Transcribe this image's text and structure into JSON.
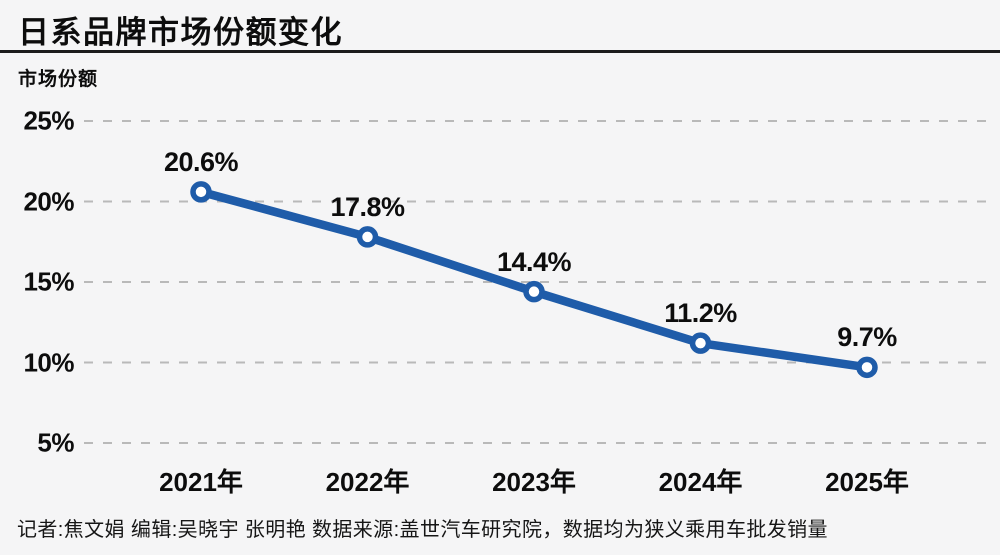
{
  "title": "日系品牌市场份额变化",
  "footer": {
    "credits": "记者:焦文娟  编辑:吴晓宇 张明艳  数据来源:盖世汽车研究院，数据均为狭义乘用车批发销量"
  },
  "chart_data": {
    "type": "line",
    "title": "日系品牌市场份额变化",
    "ylabel": "市场份额",
    "xlabel": "",
    "categories": [
      "2021年",
      "2022年",
      "2023年",
      "2024年",
      "2025年"
    ],
    "values": [
      20.6,
      17.8,
      14.4,
      11.2,
      9.7
    ],
    "data_labels": [
      "20.6%",
      "17.8%",
      "14.4%",
      "11.2%",
      "9.7%"
    ],
    "yticks": [
      25,
      20,
      15,
      10,
      5
    ],
    "ytick_labels": [
      "25%",
      "20%",
      "15%",
      "10%",
      "5%"
    ],
    "ylim": [
      5,
      25
    ],
    "grid": "horizontal-dashed",
    "legend_position": "none",
    "colors": {
      "line": "#1f5ca9",
      "marker_fill": "#ffffff",
      "grid": "#b9b9b9",
      "text": "#0d0d0d",
      "background": "#f5f5f6",
      "divider": "#1c1c1c"
    }
  }
}
